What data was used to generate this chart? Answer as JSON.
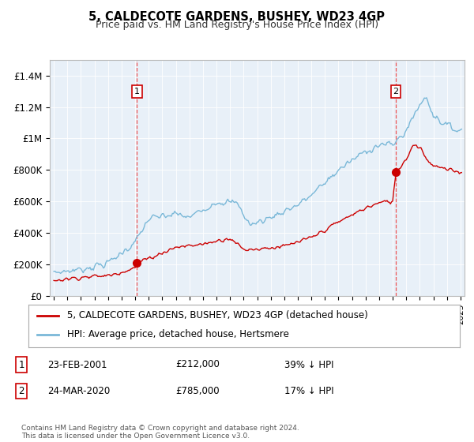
{
  "title": "5, CALDECOTE GARDENS, BUSHEY, WD23 4GP",
  "subtitle": "Price paid vs. HM Land Registry's House Price Index (HPI)",
  "legend_entries": [
    "5, CALDECOTE GARDENS, BUSHEY, WD23 4GP (detached house)",
    "HPI: Average price, detached house, Hertsmere"
  ],
  "sale1": {
    "label": "1",
    "date": "23-FEB-2001",
    "price": "£212,000",
    "hpi": "39% ↓ HPI"
  },
  "sale2": {
    "label": "2",
    "date": "24-MAR-2020",
    "price": "£785,000",
    "hpi": "17% ↓ HPI"
  },
  "footer": "Contains HM Land Registry data © Crown copyright and database right 2024.\nThis data is licensed under the Open Government Licence v3.0.",
  "hpi_color": "#7ab8d8",
  "price_color": "#cc0000",
  "marker_color": "#cc0000",
  "dashed_line_color": "#ee4444",
  "background_color": "#e8f0f8",
  "ylim": [
    0,
    1500000
  ],
  "yticks": [
    0,
    200000,
    400000,
    600000,
    800000,
    1000000,
    1200000,
    1400000
  ],
  "ytick_labels": [
    "£0",
    "£200K",
    "£400K",
    "£600K",
    "£800K",
    "£1M",
    "£1.2M",
    "£1.4M"
  ],
  "xlim_start": 1994.7,
  "xlim_end": 2025.3,
  "sale1_year": 2001.13,
  "sale1_price": 212000,
  "sale2_year": 2020.23,
  "sale2_price": 785000
}
